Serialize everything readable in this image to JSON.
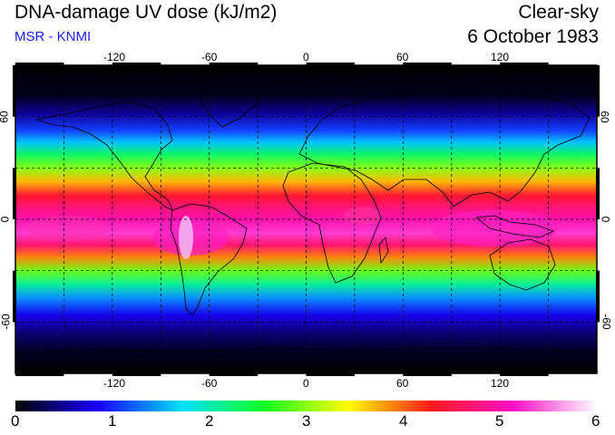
{
  "header": {
    "title": "DNA-damage UV dose (kJ/m2)",
    "subtitle": "MSR - KNMI",
    "sky_condition": "Clear-sky",
    "date": "6 October 1983"
  },
  "map": {
    "projection": "equirectangular",
    "lon_range": [
      -180,
      180
    ],
    "lat_range": [
      -90,
      90
    ],
    "lon_ticks": [
      "-120",
      "-60",
      "0",
      "60",
      "120"
    ],
    "lat_ticks": [
      "60",
      "0",
      "-60"
    ],
    "graticule": "dashed, 30 degree spacing",
    "field_description_bands_lat_to_dose": [
      [
        90,
        0.0
      ],
      [
        72,
        0.1
      ],
      [
        62,
        0.5
      ],
      [
        52,
        1.1
      ],
      [
        45,
        1.6
      ],
      [
        38,
        2.3
      ],
      [
        30,
        3.0
      ],
      [
        22,
        3.7
      ],
      [
        14,
        4.4
      ],
      [
        6,
        4.8
      ],
      [
        0,
        5.0
      ],
      [
        -8,
        5.3
      ],
      [
        -15,
        4.7
      ],
      [
        -22,
        3.9
      ],
      [
        -30,
        2.9
      ],
      [
        -38,
        2.1
      ],
      [
        -46,
        1.4
      ],
      [
        -56,
        0.8
      ],
      [
        -66,
        0.4
      ],
      [
        -78,
        0.1
      ],
      [
        -90,
        0.0
      ]
    ]
  },
  "colorbar": {
    "min": 0,
    "max": 6,
    "labels": [
      "0",
      "1",
      "2",
      "3",
      "4",
      "5",
      "6"
    ],
    "colors": [
      "#000000",
      "#1a00ff",
      "#00e0ff",
      "#10ff20",
      "#ffff00",
      "#ff1a1a",
      "#ff10c8",
      "#ffffff"
    ]
  }
}
